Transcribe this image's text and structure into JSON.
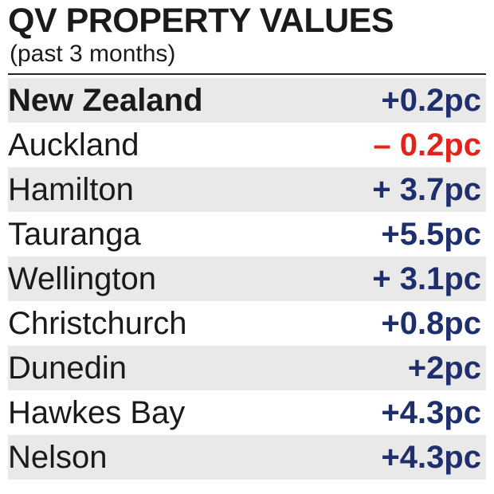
{
  "chart_data": {
    "type": "table",
    "title": "QV PROPERTY VALUES",
    "subtitle": "(past 3 months)",
    "rows": [
      {
        "region": "New Zealand",
        "value": 0.2,
        "label": "+0.2pc"
      },
      {
        "region": "Auckland",
        "value": -0.2,
        "label": "– 0.2pc"
      },
      {
        "region": "Hamilton",
        "value": 3.7,
        "label": "+ 3.7pc"
      },
      {
        "region": "Tauranga",
        "value": 5.5,
        "label": "+5.5pc"
      },
      {
        "region": "Wellington",
        "value": 3.1,
        "label": "+ 3.1pc"
      },
      {
        "region": "Christchurch",
        "value": 0.8,
        "label": "+0.8pc"
      },
      {
        "region": "Dunedin",
        "value": 2,
        "label": "+2pc"
      },
      {
        "region": "Hawkes Bay",
        "value": 4.3,
        "label": "+4.3pc"
      },
      {
        "region": "Nelson",
        "value": 4.3,
        "label": "+4.3pc"
      }
    ]
  },
  "colors": {
    "positive": "#1f2f6e",
    "negative": "#e2231a",
    "row_shade": "#e9e9e9",
    "text": "#1a1a1a"
  }
}
